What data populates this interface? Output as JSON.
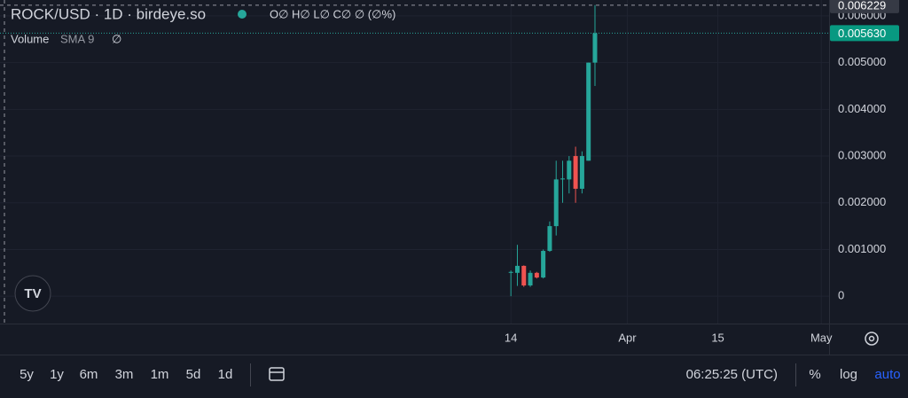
{
  "chart_data": {
    "type": "candlestick",
    "title": "ROCK/USD · 1D · birdeye.so",
    "ohlc_legend": "O∅ H∅ L∅ C∅ ∅ (∅%)",
    "volume_legend": {
      "name": "Volume",
      "indicator": "SMA 9",
      "value": "∅"
    },
    "x": [
      0,
      1,
      2,
      3,
      4,
      5,
      6,
      7,
      8,
      9,
      10,
      11,
      12,
      13
    ],
    "open": [
      0.0005,
      0.0005,
      0.00065,
      0.00023,
      0.0005,
      0.0004,
      0.00097,
      0.0015,
      0.0025,
      0.0025,
      0.003,
      0.0023,
      0.0029,
      0.005
    ],
    "high": [
      0.00055,
      0.0011,
      0.00066,
      0.00055,
      0.00052,
      0.001,
      0.0016,
      0.0029,
      0.0029,
      0.003,
      0.0032,
      0.0031,
      0.005,
      0.00623
    ],
    "low": [
      0,
      0.00022,
      0.0002,
      0.0002,
      0.00038,
      0.00038,
      0.00095,
      0.0013,
      0.002,
      0.0022,
      0.002,
      0.0022,
      0.0029,
      0.0045
    ],
    "close": [
      0.00052,
      0.00065,
      0.00023,
      0.0005,
      0.0004,
      0.00097,
      0.0015,
      0.0025,
      0.00252,
      0.0029,
      0.0023,
      0.003,
      0.005,
      0.00563
    ],
    "up_color": "#26a69a",
    "down_color": "#ef5350",
    "xlim": [
      -79,
      49.2
    ],
    "xticks": [
      {
        "value": 0,
        "label": "14"
      },
      {
        "value": 18,
        "label": "Apr"
      },
      {
        "value": 32,
        "label": "15"
      },
      {
        "value": 48,
        "label": "May"
      }
    ],
    "ylim": [
      -0.000585,
      0.00634
    ],
    "yticks": [
      0,
      {
        "value": 0.001,
        "label": "0.001000"
      },
      {
        "value": 0.002,
        "label": "0.002000"
      },
      {
        "value": 0.003,
        "label": "0.003000"
      },
      {
        "value": 0.004,
        "label": "0.004000"
      },
      {
        "value": 0.005,
        "label": "0.005000"
      },
      {
        "value": 0.006,
        "label": "0.006000"
      }
    ],
    "last_price": {
      "value": 0.00563,
      "label": "0.005630"
    },
    "crosshair_price": {
      "value": 0.006229,
      "label": "0.006229"
    },
    "grid": true,
    "log_scale": false
  },
  "toolbar": {
    "ranges": [
      "5y",
      "1y",
      "6m",
      "3m",
      "1m",
      "5d",
      "1d"
    ],
    "clock": "06:25:25 (UTC)",
    "scale_options": [
      "%",
      "log",
      "auto"
    ]
  }
}
